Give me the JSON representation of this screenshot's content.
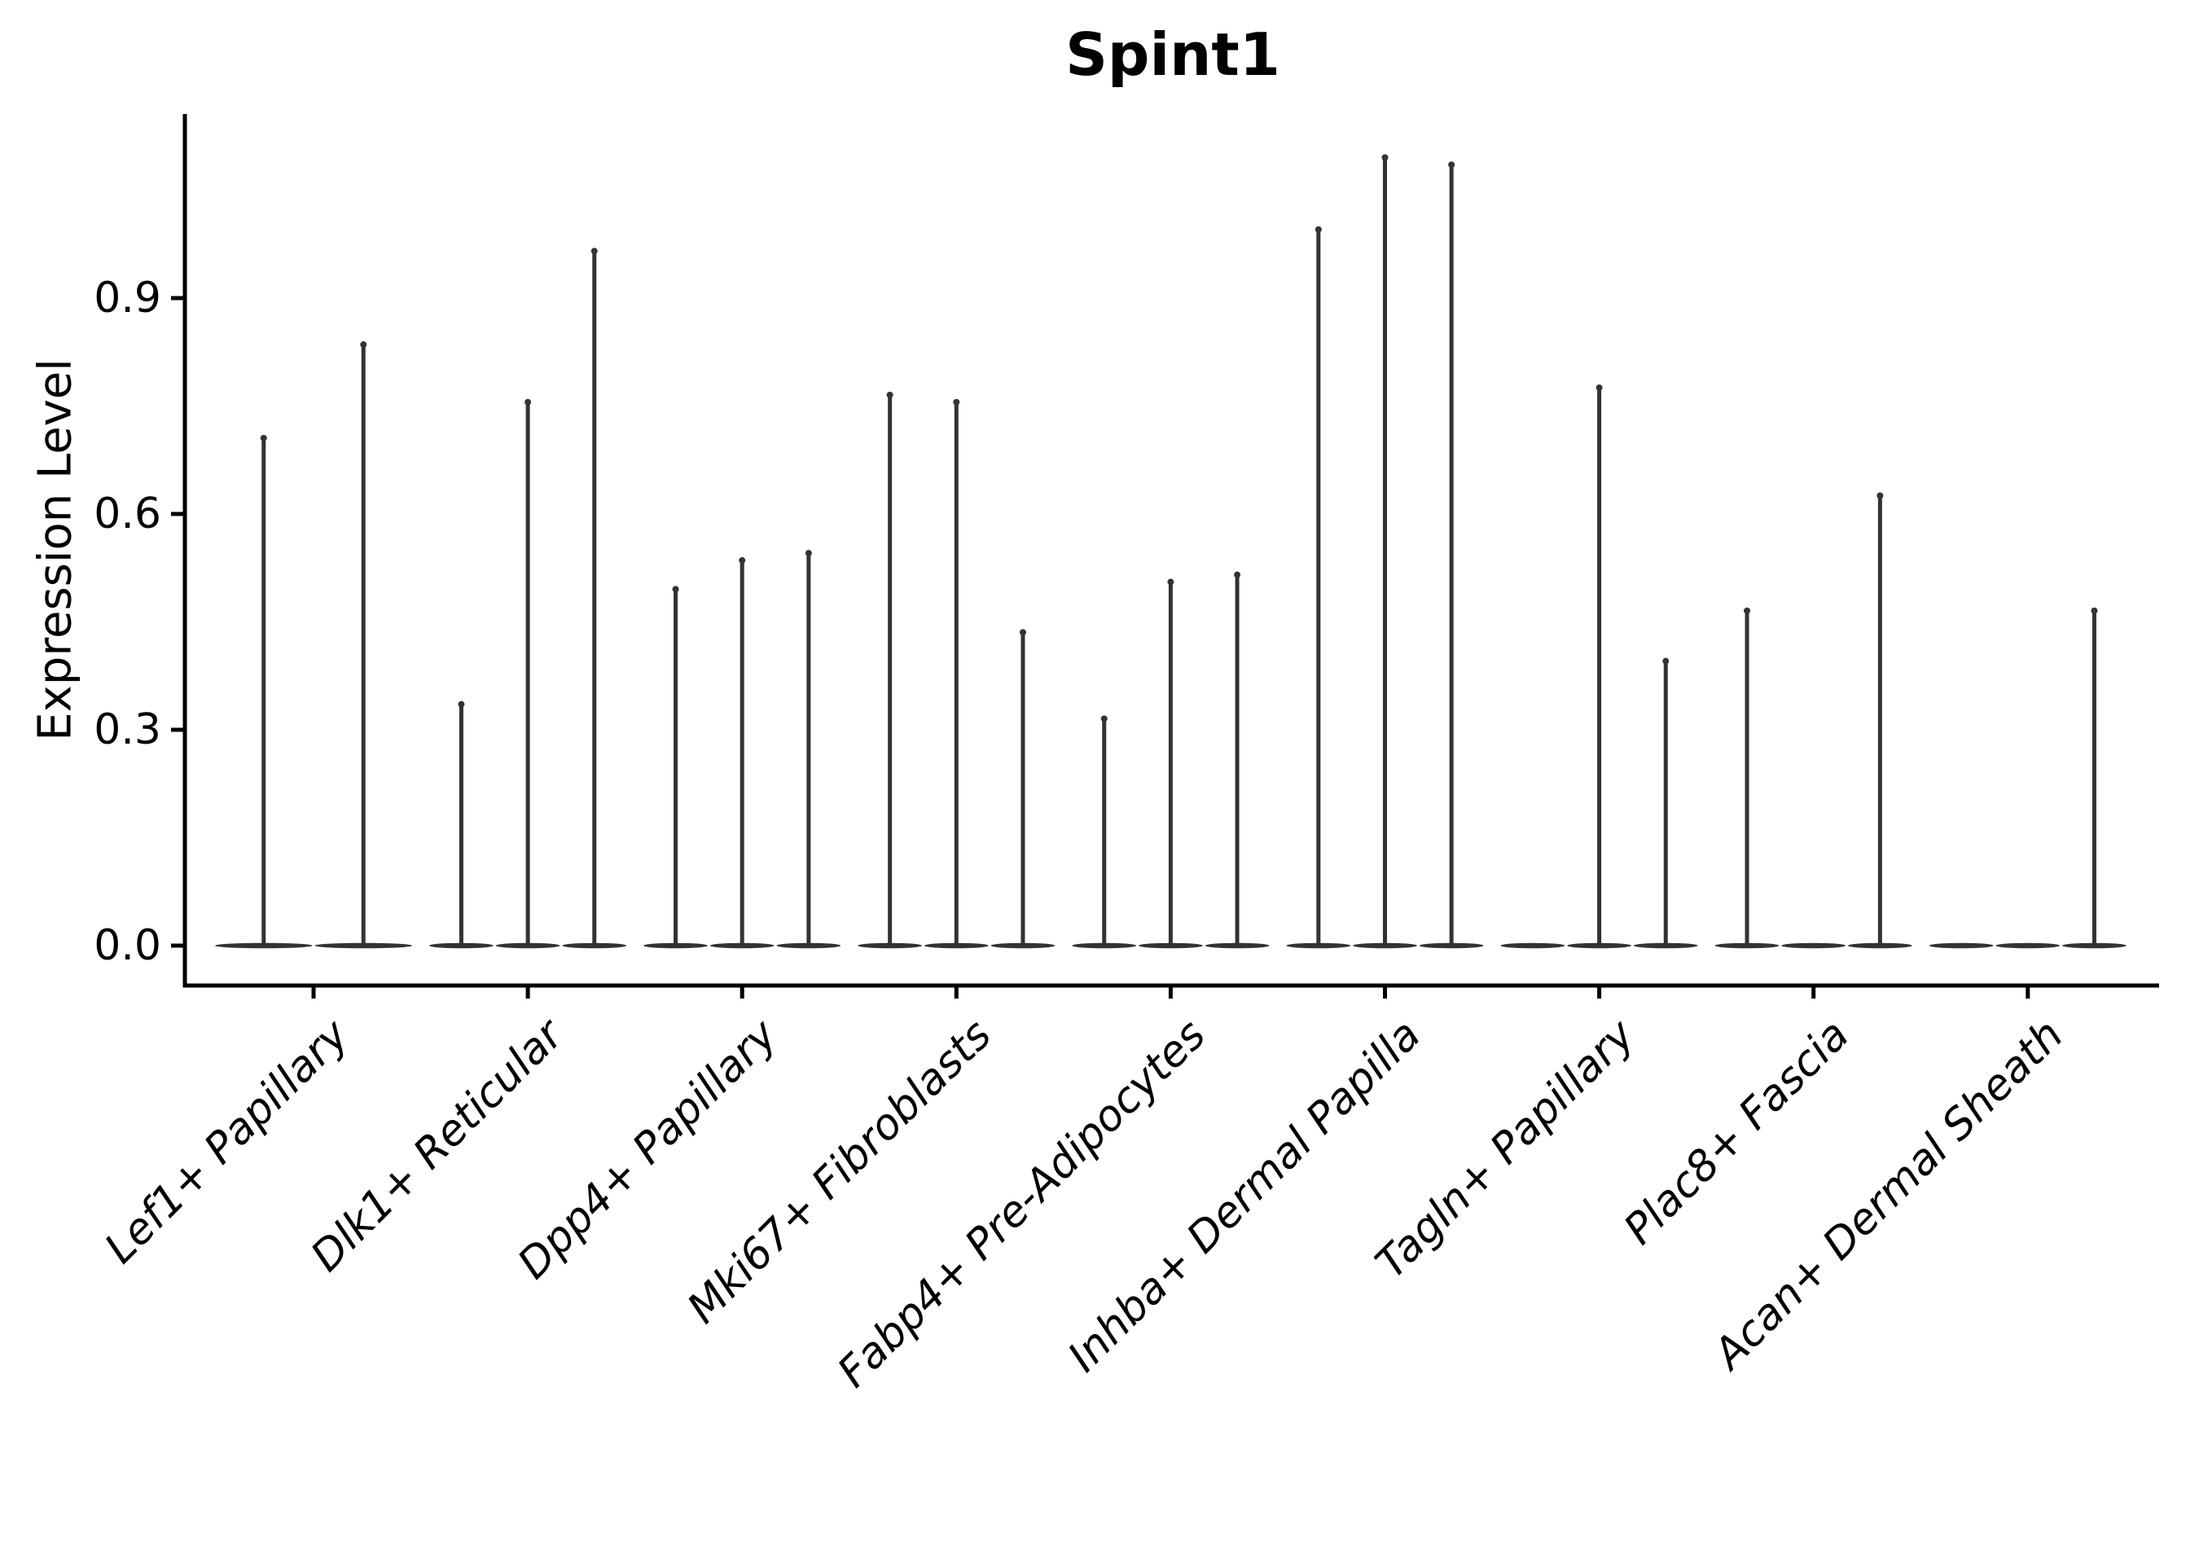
{
  "title": "Spint1",
  "y_axis": {
    "label": "Expression Level",
    "tick_labels": [
      "0.0",
      "0.3",
      "0.6",
      "0.9"
    ],
    "tick_values": [
      0.0,
      0.3,
      0.6,
      0.9
    ]
  },
  "x_axis": {
    "categories": [
      "Lef1+ Papillary",
      "Dlk1+ Reticular",
      "Dpp4+ Papillary",
      "Mki67+ Fibroblasts",
      "Fabp4+ Pre-Adipocytes",
      "Inhba+ Dermal Papilla",
      "Tagln+ Papillary",
      "Plac8+ Fascia",
      "Acan+ Dermal Sheath"
    ]
  },
  "chart_data": {
    "type": "violin",
    "title": "Spint1",
    "xlabel": "",
    "ylabel": "Expression Level",
    "ylim": [
      -0.05,
      1.16
    ],
    "yticks": [
      0.0,
      0.3,
      0.6,
      0.9
    ],
    "grid": false,
    "legend_position": "none",
    "categories": [
      "Lef1+ Papillary",
      "Dlk1+ Reticular",
      "Dpp4+ Papillary",
      "Mki67+ Fibroblasts",
      "Fabp4+ Pre-Adipocytes",
      "Inhba+ Dermal Papilla",
      "Tagln+ Papillary",
      "Plac8+ Fascia",
      "Acan+ Dermal Sheath"
    ],
    "groups": [
      {
        "label": "Lef1+ Papillary",
        "violin_maxima": [
          0.71,
          0.84
        ]
      },
      {
        "label": "Dlk1+ Reticular",
        "violin_maxima": [
          0.34,
          0.76,
          0.97
        ]
      },
      {
        "label": "Dpp4+ Papillary",
        "violin_maxima": [
          0.5,
          0.54,
          0.55
        ]
      },
      {
        "label": "Mki67+ Fibroblasts",
        "violin_maxima": [
          0.77,
          0.76,
          0.44
        ]
      },
      {
        "label": "Fabp4+ Pre-Adipocytes",
        "violin_maxima": [
          0.32,
          0.51,
          0.52
        ]
      },
      {
        "label": "Inhba+ Dermal Papilla",
        "violin_maxima": [
          1.0,
          1.1,
          1.09
        ]
      },
      {
        "label": "Tagln+ Papillary",
        "violin_maxima": [
          0,
          0.78,
          0.4
        ]
      },
      {
        "label": "Plac8+ Fascia",
        "violin_maxima": [
          0.47,
          0,
          0.63
        ]
      },
      {
        "label": "Acan+ Dermal Sheath",
        "violin_maxima": [
          0,
          0,
          0.47
        ]
      }
    ]
  },
  "style": {
    "background": "#ffffff",
    "axis_color": "#000000",
    "text_color": "#000000",
    "violin_color": "#333333"
  }
}
